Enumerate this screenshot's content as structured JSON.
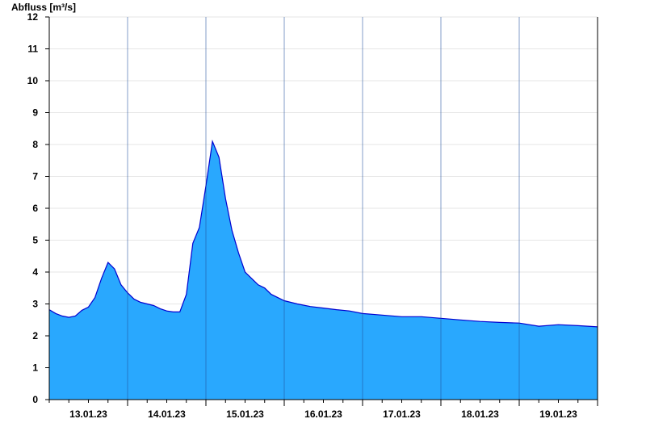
{
  "chart_data": {
    "type": "area",
    "ylabel": "Abfluss [m³/s]",
    "ylim": [
      0,
      12
    ],
    "yticks": [
      0,
      1,
      2,
      3,
      4,
      5,
      6,
      7,
      8,
      9,
      10,
      11,
      12
    ],
    "xlim": [
      "12.01.23 12:00",
      "19.01.23 12:00"
    ],
    "xtick_labels": [
      "13.01.23",
      "14.01.23",
      "15.01.23",
      "16.01.23",
      "17.01.23",
      "18.01.23",
      "19.01.23"
    ],
    "day_separators": [
      "13.01.23 12:00",
      "14.01.23 12:00",
      "15.01.23 12:00",
      "16.01.23 12:00",
      "17.01.23 12:00",
      "18.01.23 12:00",
      "19.01.23 12:00"
    ],
    "grid": true,
    "fill_color": "#29a8fe",
    "line_color": "#0000d0",
    "series": [
      {
        "x": [
          "12.01.23 12:00",
          "12.01.23 14:00",
          "12.01.23 16:00",
          "12.01.23 18:00",
          "12.01.23 20:00",
          "12.01.23 22:00",
          "13.01.23 00:00",
          "13.01.23 02:00",
          "13.01.23 04:00",
          "13.01.23 06:00",
          "13.01.23 08:00",
          "13.01.23 10:00",
          "13.01.23 12:00",
          "13.01.23 14:00",
          "13.01.23 16:00",
          "13.01.23 18:00",
          "13.01.23 20:00",
          "13.01.23 22:00",
          "14.01.23 00:00",
          "14.01.23 02:00",
          "14.01.23 04:00",
          "14.01.23 06:00",
          "14.01.23 08:00",
          "14.01.23 10:00",
          "14.01.23 12:00",
          "14.01.23 14:00",
          "14.01.23 16:00",
          "14.01.23 18:00",
          "14.01.23 20:00",
          "14.01.23 22:00",
          "15.01.23 00:00",
          "15.01.23 02:00",
          "15.01.23 04:00",
          "15.01.23 06:00",
          "15.01.23 08:00",
          "15.01.23 10:00",
          "15.01.23 12:00",
          "15.01.23 16:00",
          "15.01.23 20:00",
          "16.01.23 00:00",
          "16.01.23 04:00",
          "16.01.23 08:00",
          "16.01.23 12:00",
          "16.01.23 18:00",
          "17.01.23 00:00",
          "17.01.23 06:00",
          "17.01.23 12:00",
          "17.01.23 18:00",
          "18.01.23 00:00",
          "18.01.23 06:00",
          "18.01.23 12:00",
          "18.01.23 18:00",
          "19.01.23 00:00",
          "19.01.23 06:00",
          "19.01.23 12:00"
        ],
        "values": [
          2.82,
          2.7,
          2.62,
          2.58,
          2.62,
          2.8,
          2.9,
          3.2,
          3.8,
          4.3,
          4.1,
          3.6,
          3.35,
          3.15,
          3.05,
          3.0,
          2.95,
          2.85,
          2.78,
          2.75,
          2.75,
          3.3,
          4.9,
          5.4,
          6.7,
          8.1,
          7.6,
          6.3,
          5.3,
          4.6,
          4.0,
          3.8,
          3.6,
          3.5,
          3.3,
          3.2,
          3.1,
          3.0,
          2.92,
          2.87,
          2.82,
          2.78,
          2.7,
          2.65,
          2.6,
          2.6,
          2.55,
          2.5,
          2.45,
          2.42,
          2.4,
          2.3,
          2.35,
          2.32,
          2.28
        ]
      }
    ]
  }
}
